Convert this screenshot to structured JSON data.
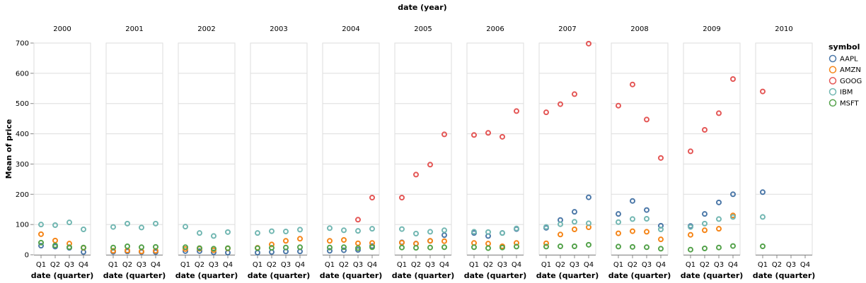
{
  "chart_data": {
    "type": "scatter",
    "title": "date (year)",
    "xlabel": "date (quarter)",
    "ylabel": "Mean of price",
    "ylim": [
      0,
      700
    ],
    "yticks": [
      0,
      100,
      200,
      300,
      400,
      500,
      600,
      700
    ],
    "grid": true,
    "legend": {
      "title": "symbol",
      "position": "right"
    },
    "facets": [
      "2000",
      "2001",
      "2002",
      "2003",
      "2004",
      "2005",
      "2006",
      "2007",
      "2008",
      "2009",
      "2010"
    ],
    "categories": [
      "Q1",
      "Q2",
      "Q3",
      "Q4"
    ],
    "series": [
      {
        "name": "AAPL",
        "color": "#4c78a8",
        "values": [
          [
            30,
            27,
            23,
            9
          ],
          [
            10,
            11,
            9,
            9
          ],
          [
            12,
            12,
            8,
            7
          ],
          [
            7,
            9,
            11,
            11
          ],
          [
            13,
            15,
            16,
            29
          ],
          [
            41,
            37,
            46,
            65
          ],
          [
            72,
            62,
            72,
            85
          ],
          [
            89,
            115,
            142,
            190
          ],
          [
            135,
            178,
            148,
            96
          ],
          [
            95,
            135,
            173,
            200
          ],
          [
            207,
            null,
            null,
            null
          ]
        ]
      },
      {
        "name": "AMZN",
        "color": "#f58518",
        "values": [
          [
            68,
            47,
            37,
            23
          ],
          [
            13,
            14,
            11,
            13
          ],
          [
            19,
            20,
            15,
            21
          ],
          [
            23,
            34,
            46,
            53
          ],
          [
            46,
            49,
            38,
            39
          ],
          [
            40,
            37,
            46,
            45
          ],
          [
            39,
            37,
            28,
            39
          ],
          [
            38,
            67,
            84,
            91
          ],
          [
            71,
            78,
            76,
            51
          ],
          [
            66,
            81,
            86,
            130
          ],
          [
            null,
            null,
            null,
            null
          ]
        ]
      },
      {
        "name": "GOOG",
        "color": "#e45756",
        "values": [
          [
            null,
            null,
            null,
            null
          ],
          [
            null,
            null,
            null,
            null
          ],
          [
            null,
            null,
            null,
            null
          ],
          [
            null,
            null,
            null,
            null
          ],
          [
            null,
            null,
            116,
            189
          ],
          [
            189,
            265,
            298,
            398
          ],
          [
            396,
            403,
            390,
            475
          ],
          [
            471,
            498,
            531,
            698
          ],
          [
            493,
            563,
            447,
            320
          ],
          [
            342,
            413,
            468,
            581
          ],
          [
            540,
            null,
            null,
            null
          ]
        ]
      },
      {
        "name": "IBM",
        "color": "#72b7b2",
        "values": [
          [
            100,
            98,
            107,
            84
          ],
          [
            92,
            103,
            90,
            103
          ],
          [
            93,
            72,
            62,
            75
          ],
          [
            72,
            78,
            77,
            83
          ],
          [
            88,
            81,
            79,
            86
          ],
          [
            85,
            70,
            76,
            81
          ],
          [
            76,
            75,
            72,
            87
          ],
          [
            92,
            101,
            109,
            104
          ],
          [
            108,
            118,
            119,
            84
          ],
          [
            92,
            103,
            118,
            125
          ],
          [
            125,
            null,
            null,
            null
          ]
        ]
      },
      {
        "name": "MSFT",
        "color": "#54a24b",
        "values": [
          [
            40,
            31,
            25,
            24
          ],
          [
            24,
            28,
            25,
            26
          ],
          [
            25,
            22,
            20,
            22
          ],
          [
            22,
            23,
            24,
            25
          ],
          [
            24,
            25,
            22,
            25
          ],
          [
            24,
            23,
            24,
            25
          ],
          [
            25,
            22,
            24,
            27
          ],
          [
            27,
            28,
            28,
            33
          ],
          [
            27,
            26,
            25,
            20
          ],
          [
            17,
            21,
            24,
            29
          ],
          [
            28,
            null,
            null,
            null
          ]
        ]
      }
    ]
  }
}
